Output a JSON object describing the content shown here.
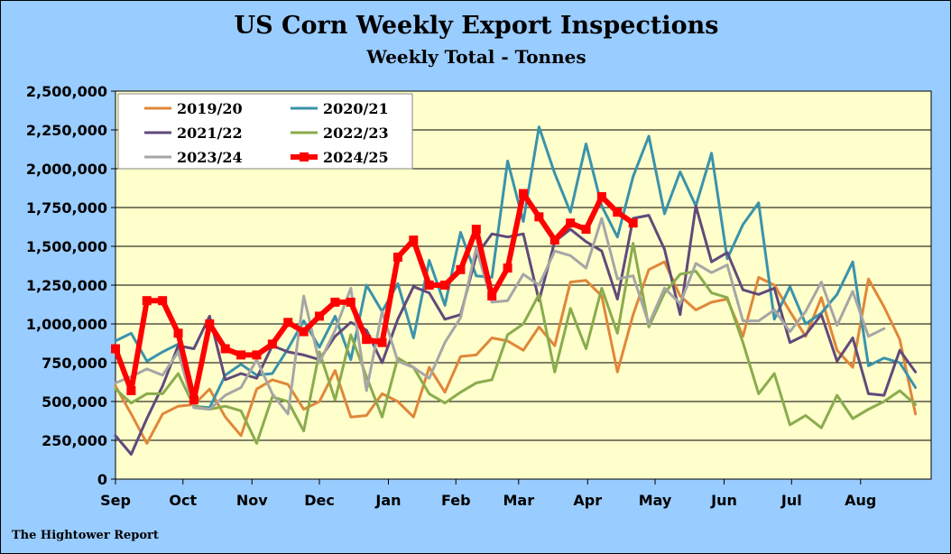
{
  "chart_data": {
    "type": "line",
    "title": "US Corn Weekly Export Inspections",
    "subtitle": "Weekly Total - Tonnes",
    "source": "The Hightower Report",
    "xlabel": "",
    "ylabel": "",
    "ylim": [
      0,
      2500000
    ],
    "yticks": [
      0,
      250000,
      500000,
      750000,
      1000000,
      1250000,
      1500000,
      1750000,
      2000000,
      2250000,
      2500000
    ],
    "ytick_labels": [
      "0",
      "250,000",
      "500,000",
      "750,000",
      "1,000,000",
      "1,250,000",
      "1,500,000",
      "1,750,000",
      "2,000,000",
      "2,250,000",
      "2,500,000"
    ],
    "x_unit": "marketing-year week (week 0 = first week of Sep)",
    "xlim": [
      0,
      52
    ],
    "months": [
      {
        "label": "Sep",
        "week": 0
      },
      {
        "label": "Oct",
        "week": 4.3
      },
      {
        "label": "Nov",
        "week": 8.7
      },
      {
        "label": "Dec",
        "week": 13
      },
      {
        "label": "Jan",
        "week": 17.4
      },
      {
        "label": "Feb",
        "week": 21.7
      },
      {
        "label": "Mar",
        "week": 25.7
      },
      {
        "label": "Apr",
        "week": 30.1
      },
      {
        "label": "May",
        "week": 34.4
      },
      {
        "label": "Jun",
        "week": 38.8
      },
      {
        "label": "Jul",
        "week": 43.1
      },
      {
        "label": "Aug",
        "week": 47.5
      }
    ],
    "grid": true,
    "legend_position": "top-left",
    "series": [
      {
        "name": "2019/20",
        "color": "#e0873a",
        "width": 3,
        "markers": false,
        "values": [
          600000,
          420000,
          230000,
          420000,
          470000,
          480000,
          580000,
          400000,
          280000,
          580000,
          640000,
          610000,
          450000,
          500000,
          700000,
          400000,
          410000,
          550000,
          500000,
          400000,
          720000,
          560000,
          790000,
          800000,
          910000,
          890000,
          830000,
          980000,
          860000,
          1270000,
          1280000,
          1180000,
          690000,
          1060000,
          1350000,
          1400000,
          1180000,
          1090000,
          1140000,
          1160000,
          920000,
          1300000,
          1250000,
          1080000,
          920000,
          1170000,
          830000,
          720000,
          1290000,
          1110000,
          900000,
          420000
        ]
      },
      {
        "name": "2020/21",
        "color": "#3a93ab",
        "width": 3,
        "markers": false,
        "values": [
          890000,
          940000,
          760000,
          820000,
          870000,
          470000,
          460000,
          670000,
          740000,
          670000,
          680000,
          840000,
          1020000,
          850000,
          1050000,
          770000,
          1250000,
          1080000,
          1260000,
          910000,
          1410000,
          1120000,
          1590000,
          1310000,
          1300000,
          2050000,
          1660000,
          2270000,
          1970000,
          1720000,
          2160000,
          1760000,
          1560000,
          1950000,
          2210000,
          1710000,
          1980000,
          1760000,
          2100000,
          1420000,
          1640000,
          1780000,
          1030000,
          1240000,
          1000000,
          1070000,
          1190000,
          1400000,
          730000,
          780000,
          750000,
          590000
        ]
      },
      {
        "name": "2021/22",
        "color": "#604a7b",
        "width": 3,
        "markers": false,
        "values": [
          280000,
          160000,
          390000,
          600000,
          860000,
          840000,
          1050000,
          640000,
          680000,
          650000,
          860000,
          820000,
          800000,
          770000,
          920000,
          1010000,
          960000,
          750000,
          1030000,
          1240000,
          1200000,
          1030000,
          1060000,
          1440000,
          1580000,
          1560000,
          1580000,
          1150000,
          1530000,
          1610000,
          1530000,
          1470000,
          1160000,
          1680000,
          1700000,
          1480000,
          1060000,
          1760000,
          1400000,
          1460000,
          1220000,
          1190000,
          1230000,
          880000,
          930000,
          1060000,
          760000,
          910000,
          550000,
          540000,
          830000,
          690000
        ]
      },
      {
        "name": "2022/23",
        "color": "#8aac4d",
        "width": 3,
        "markers": false,
        "values": [
          580000,
          490000,
          550000,
          550000,
          680000,
          470000,
          450000,
          470000,
          440000,
          230000,
          530000,
          500000,
          310000,
          820000,
          510000,
          930000,
          660000,
          400000,
          780000,
          720000,
          550000,
          490000,
          560000,
          620000,
          640000,
          930000,
          1000000,
          1190000,
          690000,
          1100000,
          840000,
          1230000,
          940000,
          1520000,
          980000,
          1200000,
          1320000,
          1340000,
          1200000,
          1170000,
          880000,
          550000,
          680000,
          350000,
          410000,
          330000,
          540000,
          390000,
          450000,
          500000,
          570000,
          480000
        ]
      },
      {
        "name": "2023/24",
        "color": "#a6a6a6",
        "width": 3,
        "markers": false,
        "values": [
          620000,
          660000,
          710000,
          670000,
          820000,
          460000,
          450000,
          540000,
          590000,
          770000,
          550000,
          420000,
          1180000,
          750000,
          960000,
          1230000,
          570000,
          1080000,
          760000,
          720000,
          650000,
          880000,
          1040000,
          1490000,
          1140000,
          1150000,
          1320000,
          1250000,
          1470000,
          1440000,
          1360000,
          1680000,
          1290000,
          1310000,
          1000000,
          1230000,
          1130000,
          1390000,
          1330000,
          1380000,
          1020000,
          1020000,
          1090000,
          950000,
          1080000,
          1270000,
          990000,
          1210000,
          920000,
          970000
        ]
      },
      {
        "name": "2024/25",
        "color": "#ff0000",
        "width": 6,
        "markers": true,
        "values": [
          840000,
          570000,
          1150000,
          1150000,
          940000,
          510000,
          1000000,
          840000,
          800000,
          800000,
          870000,
          1010000,
          950000,
          1050000,
          1140000,
          1140000,
          900000,
          880000,
          1430000,
          1540000,
          1250000,
          1250000,
          1350000,
          1610000,
          1180000,
          1360000,
          1840000,
          1690000,
          1540000,
          1650000,
          1610000,
          1820000,
          1720000,
          1650000
        ]
      }
    ]
  }
}
